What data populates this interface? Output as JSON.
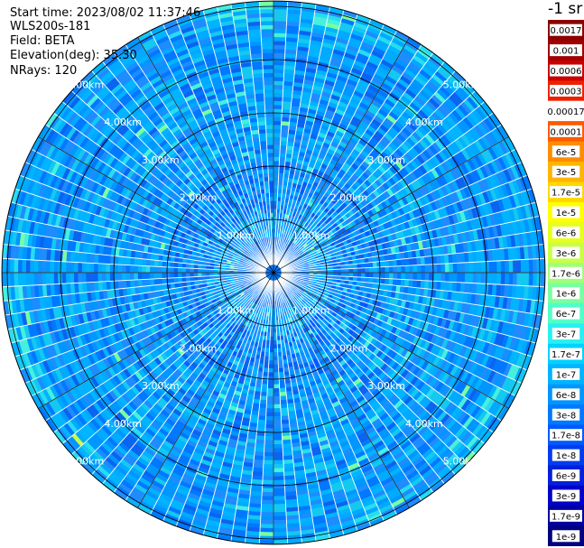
{
  "header": {
    "start_time": "Start time: 2023/08/02 11:37:46",
    "instrument": "WLS200s-181",
    "field": "Field: BETA",
    "elevation": "Elevation(deg): 35.30",
    "nrays": "NRays: 120"
  },
  "colorbar": {
    "unit_label": "-1 sr",
    "ticks": [
      "0.0017",
      "0.001",
      "0.0006",
      "0.0003",
      "0.00017",
      "0.0001",
      "6e-5",
      "3e-5",
      "1.7e-5",
      "1e-5",
      "6e-6",
      "3e-6",
      "1.7e-6",
      "1e-6",
      "6e-7",
      "3e-7",
      "1.7e-7",
      "1e-7",
      "6e-8",
      "3e-8",
      "1.7e-8",
      "1e-8",
      "6e-9",
      "3e-9",
      "1.7e-9",
      "1e-9"
    ],
    "colors": [
      "#8b0000",
      "#a00000",
      "#c80000",
      "#f02000",
      "#ffffff",
      "#ff5a00",
      "#ff8c00",
      "#ffb400",
      "#ffd700",
      "#ffff00",
      "#e6ff1e",
      "#c8ff46",
      "#a0ff78",
      "#78ffa0",
      "#50ffc8",
      "#28f0f0",
      "#00d2ff",
      "#00b4ff",
      "#0096ff",
      "#0078ff",
      "#005aff",
      "#003cf0",
      "#0020dc",
      "#0000c8",
      "#0000a0",
      "#000080"
    ]
  },
  "chart_data": {
    "type": "heatmap",
    "projection": "polar PPI scan",
    "nrays": 120,
    "range_rings_km": [
      1,
      2,
      3,
      4,
      5
    ],
    "range_labels": [
      "1.00km",
      "2.00km",
      "3.00km",
      "4.00km",
      "5.00km"
    ],
    "max_range_km": 5.1,
    "values_description_range": [
      "1e-9",
      "0.0017"
    ],
    "dominant_value_range": [
      "3e-8",
      "1e-7"
    ],
    "grid": true
  }
}
